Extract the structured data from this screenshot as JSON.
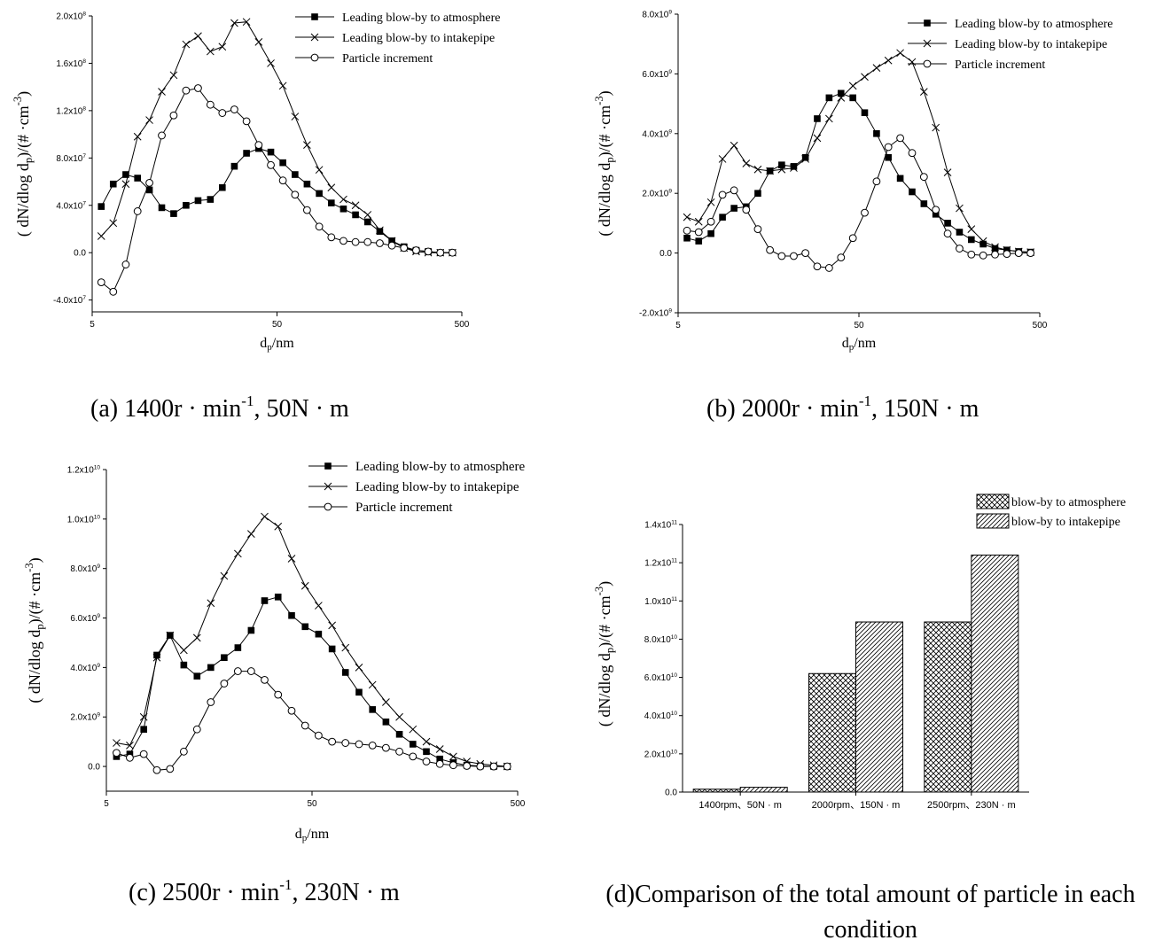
{
  "figure": {
    "captions": {
      "a": {
        "main": "(a) 1400r · min",
        "sup": "-1",
        "rest": ", 50N · m"
      },
      "b": {
        "main": "(b) 2000r · min",
        "sup": "-1",
        "rest": ", 150N · m"
      },
      "c": {
        "main": "(c) 2500r · min",
        "sup": "-1",
        "rest": ", 230N · m"
      },
      "d": {
        "text": "(d)Comparison of the total amount of particle in each condition"
      }
    }
  },
  "chart_data": [
    {
      "id": "a",
      "type": "line",
      "xscale": "log",
      "xlim": [
        5,
        500
      ],
      "xticks": [
        5,
        50,
        500
      ],
      "xtick_labels": [
        "5",
        "50",
        "500"
      ],
      "ylim": [
        -50000000,
        200000000
      ],
      "yticks": [
        -40000000,
        0,
        40000000,
        80000000,
        120000000,
        160000000,
        200000000
      ],
      "ytick_labels": [
        "-4.0x10^7",
        "0.0",
        "4.0x10^7",
        "8.0x10^7",
        "1.2x10^8",
        "1.6x10^8",
        "2.0x10^8"
      ],
      "xlabel": {
        "base": "d",
        "sub": "p",
        "rest": "/nm"
      },
      "ylabel": "( dN/dlog dp)/(# ·cm-3)",
      "legend": {
        "position": "top-right"
      },
      "x": [
        5.6,
        6.04,
        6.51,
        7.02,
        7.57,
        8.17,
        8.8,
        9.49,
        10.23,
        11.03,
        11.9,
        12.83,
        13.84,
        14.92,
        16.09,
        17.35,
        18.71,
        20.18,
        21.76,
        23.46,
        25.3,
        27.28,
        29.42,
        31.72,
        34.21,
        36.89,
        39.78,
        42.9,
        46.26,
        49.88,
        53.79,
        58.01,
        62.55,
        67.45,
        72.74,
        78.44,
        84.58,
        91.21,
        98.36,
        106.07,
        114.38,
        123.35,
        133.01,
        143.44,
        154.68,
        166.8,
        179.87,
        193.97,
        209.17,
        225.56,
        243.24,
        262.3,
        282.86,
        305.03,
        328.94,
        354.72,
        382.52,
        412.5,
        444.83,
        479.69
      ],
      "series": [
        {
          "name": "Leading blow-by to atmosphere",
          "marker": "square-filled",
          "x": [
            5.6,
            6.5,
            7.6,
            8.8,
            10.2,
            11.9,
            13.8,
            16.1,
            18.7,
            21.8,
            25.3,
            29.4,
            34.2,
            39.8,
            46.3,
            53.8,
            62.6,
            72.7,
            84.6,
            98.4,
            114.4,
            133.0,
            154.7,
            179.9,
            209.2,
            243.2,
            282.9,
            328.9,
            382.5,
            444.8
          ],
          "y": [
            39000000,
            58000000,
            66000000,
            63000000,
            53000000,
            38000000,
            33000000,
            40000000,
            44000000,
            45000000,
            55000000,
            73000000,
            84000000,
            88000000,
            85000000,
            76000000,
            66000000,
            58000000,
            50000000,
            42000000,
            37000000,
            32000000,
            26000000,
            18000000,
            10000000,
            5000000,
            2000000,
            1000000,
            0,
            0
          ]
        },
        {
          "name": "Leading blow-by to intakepipe",
          "marker": "x",
          "x": [
            5.6,
            6.5,
            7.6,
            8.8,
            10.2,
            11.9,
            13.8,
            16.1,
            18.7,
            21.8,
            25.3,
            29.4,
            34.2,
            39.8,
            46.3,
            53.8,
            62.6,
            72.7,
            84.6,
            98.4,
            114.4,
            133.0,
            154.7,
            179.9,
            209.2,
            243.2,
            282.9,
            328.9,
            382.5,
            444.8
          ],
          "y": [
            14000000,
            25000000,
            58000000,
            98000000,
            112000000,
            136000000,
            150000000,
            176000000,
            183000000,
            170000000,
            174000000,
            194000000,
            195000000,
            178000000,
            160000000,
            141000000,
            115000000,
            91000000,
            70000000,
            55000000,
            45000000,
            40000000,
            32000000,
            19000000,
            10000000,
            4000000,
            1000000,
            0,
            0,
            0
          ]
        },
        {
          "name": "Particle increment",
          "marker": "circle-open",
          "x": [
            5.6,
            6.5,
            7.6,
            8.8,
            10.2,
            11.9,
            13.8,
            16.1,
            18.7,
            21.8,
            25.3,
            29.4,
            34.2,
            39.8,
            46.3,
            53.8,
            62.6,
            72.7,
            84.6,
            98.4,
            114.4,
            133.0,
            154.7,
            179.9,
            209.2,
            243.2,
            282.9,
            328.9,
            382.5,
            444.8
          ],
          "y": [
            -25000000,
            -33000000,
            -10000000,
            35000000,
            59000000,
            99000000,
            116000000,
            137000000,
            139000000,
            125000000,
            118000000,
            121000000,
            111000000,
            91000000,
            74000000,
            61000000,
            49000000,
            36000000,
            22000000,
            13000000,
            10000000,
            9000000,
            9000000,
            8000000,
            6000000,
            4000000,
            2000000,
            1000000,
            0,
            0
          ]
        }
      ]
    },
    {
      "id": "b",
      "type": "line",
      "xscale": "log",
      "xlim": [
        5,
        500
      ],
      "xticks": [
        5,
        50,
        500
      ],
      "xtick_labels": [
        "5",
        "50",
        "500"
      ],
      "ylim": [
        -2000000000,
        8000000000
      ],
      "yticks": [
        -2000000000,
        0,
        2000000000,
        4000000000,
        6000000000,
        8000000000
      ],
      "ytick_labels": [
        "-2.0x10^9",
        "0.0",
        "2.0x10^9",
        "4.0x10^9",
        "6.0x10^9",
        "8.0x10^9"
      ],
      "xlabel": {
        "base": "d",
        "sub": "p",
        "rest": "/nm"
      },
      "ylabel": "( dN/dlog dp)/(# ·cm-3)",
      "legend": {
        "position": "top-right"
      },
      "series": [
        {
          "name": "Leading blow-by to atmosphere",
          "marker": "square-filled",
          "x": [
            5.6,
            6.5,
            7.6,
            8.8,
            10.2,
            11.9,
            13.8,
            16.1,
            18.7,
            21.8,
            25.3,
            29.4,
            34.2,
            39.8,
            46.3,
            53.8,
            62.6,
            72.7,
            84.6,
            98.4,
            114.4,
            133.0,
            154.7,
            179.9,
            209.2,
            243.2,
            282.9,
            328.9,
            382.5,
            444.8
          ],
          "y": [
            500000000,
            400000000,
            650000000,
            1200000000,
            1500000000,
            1550000000,
            2000000000,
            2750000000,
            2950000000,
            2900000000,
            3200000000,
            4500000000,
            5200000000,
            5350000000,
            5200000000,
            4700000000,
            4000000000,
            3200000000,
            2500000000,
            2050000000,
            1650000000,
            1300000000,
            1000000000,
            700000000,
            450000000,
            300000000,
            150000000,
            100000000,
            50000000,
            30000000
          ]
        },
        {
          "name": "Leading blow-by to intakepipe",
          "marker": "x",
          "x": [
            5.6,
            6.5,
            7.6,
            8.8,
            10.2,
            11.9,
            13.8,
            16.1,
            18.7,
            21.8,
            25.3,
            29.4,
            34.2,
            39.8,
            46.3,
            53.8,
            62.6,
            72.7,
            84.6,
            98.4,
            114.4,
            133.0,
            154.7,
            179.9,
            209.2,
            243.2,
            282.9,
            328.9,
            382.5,
            444.8
          ],
          "y": [
            1200000000,
            1050000000,
            1700000000,
            3150000000,
            3600000000,
            3000000000,
            2800000000,
            2750000000,
            2800000000,
            2850000000,
            3150000000,
            3850000000,
            4500000000,
            5200000000,
            5600000000,
            5900000000,
            6200000000,
            6450000000,
            6700000000,
            6400000000,
            5400000000,
            4200000000,
            2700000000,
            1500000000,
            800000000,
            400000000,
            200000000,
            100000000,
            50000000,
            30000000
          ]
        },
        {
          "name": "Particle increment",
          "marker": "circle-open",
          "x": [
            5.6,
            6.5,
            7.6,
            8.8,
            10.2,
            11.9,
            13.8,
            16.1,
            18.7,
            21.8,
            25.3,
            29.4,
            34.2,
            39.8,
            46.3,
            53.8,
            62.6,
            72.7,
            84.6,
            98.4,
            114.4,
            133.0,
            154.7,
            179.9,
            209.2,
            243.2,
            282.9,
            328.9,
            382.5,
            444.8
          ],
          "y": [
            750000000,
            700000000,
            1050000000,
            1950000000,
            2100000000,
            1450000000,
            800000000,
            100000000,
            -100000000,
            -100000000,
            0,
            -450000000,
            -500000000,
            -150000000,
            500000000,
            1350000000,
            2400000000,
            3550000000,
            3850000000,
            3350000000,
            2550000000,
            1450000000,
            650000000,
            150000000,
            -50000000,
            -80000000,
            -50000000,
            -30000000,
            0,
            0
          ]
        }
      ]
    },
    {
      "id": "c",
      "type": "line",
      "xscale": "log",
      "xlim": [
        5,
        500
      ],
      "xticks": [
        5,
        50,
        500
      ],
      "xtick_labels": [
        "5",
        "50",
        "500"
      ],
      "ylim": [
        -1000000000,
        12000000000
      ],
      "yticks": [
        0,
        2000000000,
        4000000000,
        6000000000,
        8000000000,
        10000000000,
        12000000000
      ],
      "ytick_labels": [
        "0.0",
        "2.0x10^9",
        "4.0x10^9",
        "6.0x10^9",
        "8.0x10^9",
        "1.0x10^10",
        "1.2x10^10"
      ],
      "xlabel": {
        "base": "d",
        "sub": "p",
        "rest": "/nm"
      },
      "ylabel": "( dN/dlog dp)/(# ·cm-3)",
      "legend": {
        "position": "top-right"
      },
      "series": [
        {
          "name": "Leading blow-by to atmosphere",
          "marker": "square-filled",
          "x": [
            5.6,
            6.5,
            7.6,
            8.8,
            10.2,
            11.9,
            13.8,
            16.1,
            18.7,
            21.8,
            25.3,
            29.4,
            34.2,
            39.8,
            46.3,
            53.8,
            62.6,
            72.7,
            84.6,
            98.4,
            114.4,
            133.0,
            154.7,
            179.9,
            209.2,
            243.2,
            282.9,
            328.9,
            382.5,
            444.8
          ],
          "y": [
            400000000,
            500000000,
            1500000000,
            4500000000,
            5300000000,
            4100000000,
            3650000000,
            4000000000,
            4400000000,
            4800000000,
            5500000000,
            6700000000,
            6850000000,
            6100000000,
            5650000000,
            5350000000,
            4750000000,
            3800000000,
            3000000000,
            2300000000,
            1800000000,
            1300000000,
            900000000,
            600000000,
            300000000,
            150000000,
            50000000,
            20000000,
            0,
            0
          ]
        },
        {
          "name": "Leading blow-by to intakepipe",
          "marker": "x",
          "x": [
            5.6,
            6.5,
            7.6,
            8.8,
            10.2,
            11.9,
            13.8,
            16.1,
            18.7,
            21.8,
            25.3,
            29.4,
            34.2,
            39.8,
            46.3,
            53.8,
            62.6,
            72.7,
            84.6,
            98.4,
            114.4,
            133.0,
            154.7,
            179.9,
            209.2,
            243.2,
            282.9,
            328.9,
            382.5,
            444.8
          ],
          "y": [
            950000000,
            850000000,
            2000000000,
            4400000000,
            5300000000,
            4700000000,
            5200000000,
            6600000000,
            7700000000,
            8600000000,
            9400000000,
            10100000000,
            9700000000,
            8400000000,
            7300000000,
            6500000000,
            5700000000,
            4800000000,
            4000000000,
            3300000000,
            2600000000,
            2000000000,
            1500000000,
            1000000000,
            700000000,
            400000000,
            200000000,
            100000000,
            50000000,
            0
          ]
        },
        {
          "name": "Particle increment",
          "marker": "circle-open",
          "x": [
            5.6,
            6.5,
            7.6,
            8.8,
            10.2,
            11.9,
            13.8,
            16.1,
            18.7,
            21.8,
            25.3,
            29.4,
            34.2,
            39.8,
            46.3,
            53.8,
            62.6,
            72.7,
            84.6,
            98.4,
            114.4,
            133.0,
            154.7,
            179.9,
            209.2,
            243.2,
            282.9,
            328.9,
            382.5,
            444.8
          ],
          "y": [
            550000000,
            350000000,
            500000000,
            -150000000,
            -100000000,
            600000000,
            1500000000,
            2600000000,
            3350000000,
            3850000000,
            3850000000,
            3500000000,
            2900000000,
            2250000000,
            1650000000,
            1250000000,
            1000000000,
            950000000,
            900000000,
            850000000,
            750000000,
            600000000,
            400000000,
            200000000,
            100000000,
            50000000,
            20000000,
            0,
            0,
            0
          ]
        }
      ]
    },
    {
      "id": "d",
      "type": "bar",
      "categories": [
        "1400rpm、50N · m",
        "2000rpm、150N · m",
        "2500rpm、230N · m"
      ],
      "ylim": [
        0,
        140000000000
      ],
      "yticks": [
        0,
        20000000000,
        40000000000,
        60000000000,
        80000000000,
        100000000000,
        120000000000,
        140000000000
      ],
      "ytick_labels": [
        "0.0",
        "2.0x10^10",
        "4.0x10^10",
        "6.0x10^10",
        "8.0x10^10",
        "1.0x10^11",
        "1.2x10^11",
        "1.4x10^11"
      ],
      "ylabel": "( dN/dlog dp)/(# ·cm-3)",
      "legend": {
        "position": "top-right"
      },
      "series": [
        {
          "name": "blow-by to atmosphere",
          "pattern": "crosshatch",
          "values": [
            1500000000,
            62000000000,
            89000000000
          ]
        },
        {
          "name": "blow-by to intakepipe",
          "pattern": "diagonal",
          "values": [
            2500000000,
            89000000000,
            124000000000
          ]
        }
      ]
    }
  ]
}
